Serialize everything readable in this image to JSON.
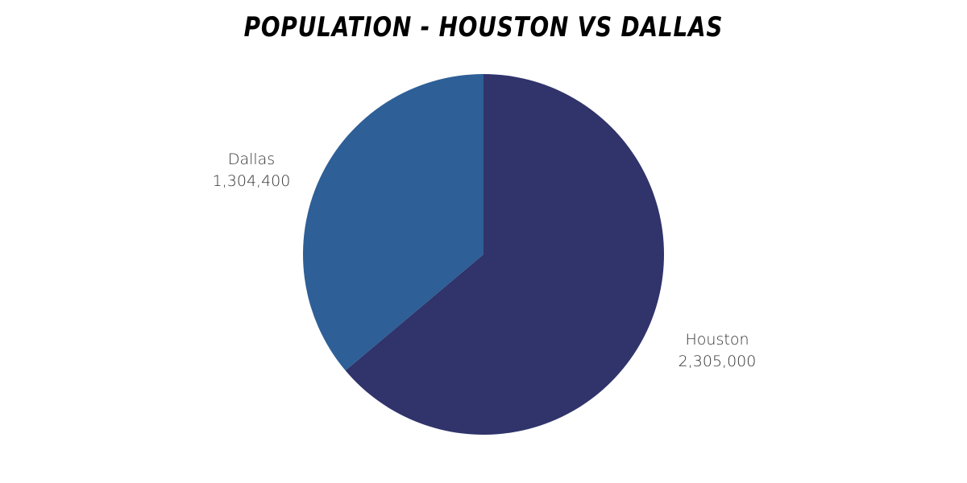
{
  "chart_data": {
    "type": "pie",
    "title": "POPULATION - HOUSTON VS DALLAS",
    "slices": [
      {
        "label": "Houston",
        "value": 2305000,
        "value_label": "2,305,000",
        "color": "#30346b"
      },
      {
        "label": "Dallas",
        "value": 1304400,
        "value_label": "1,304,400",
        "color": "#2e5f97"
      }
    ],
    "start_angle": "top",
    "direction": "clockwise",
    "legend": "none"
  }
}
